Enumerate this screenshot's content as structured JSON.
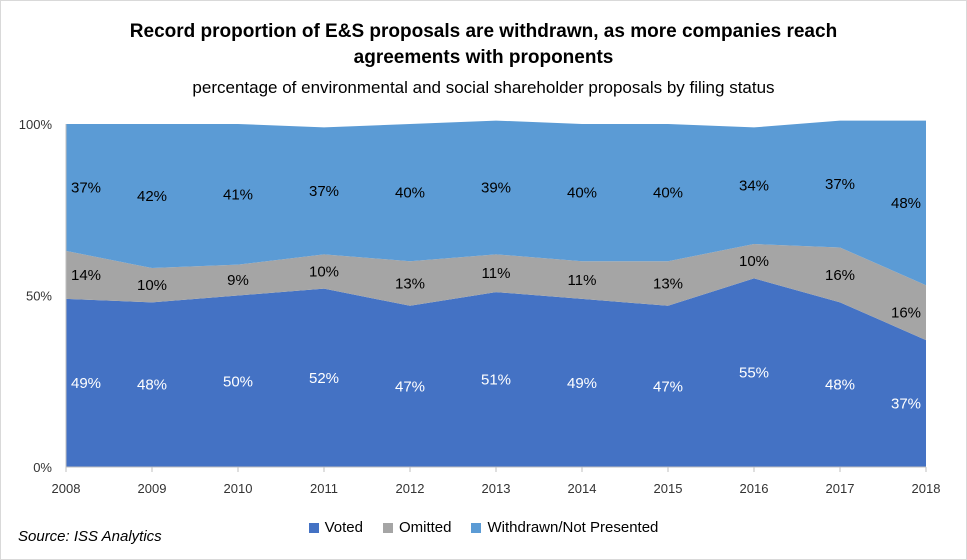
{
  "title_line1": "Record proportion of E&S proposals are withdrawn, as more companies reach",
  "title_line2": "agreements with proponents",
  "subtitle": "percentage of environmental and social shareholder proposals by filing status",
  "source": "Source: ISS Analytics",
  "chart_data": {
    "type": "area",
    "stacked": true,
    "x": [
      "2008",
      "2009",
      "2010",
      "2011",
      "2012",
      "2013",
      "2014",
      "2015",
      "2016",
      "2017",
      "2018"
    ],
    "ylim": [
      0,
      100
    ],
    "yticks": [
      "0%",
      "50%",
      "100%"
    ],
    "series": [
      {
        "name": "Voted",
        "color": "#4472c4",
        "label_color": "#ffffff",
        "values": [
          49,
          48,
          50,
          52,
          47,
          51,
          49,
          47,
          55,
          48,
          37
        ]
      },
      {
        "name": "Omitted",
        "color": "#a5a5a5",
        "label_color": "#000000",
        "values": [
          14,
          10,
          9,
          10,
          13,
          11,
          11,
          13,
          10,
          16,
          16
        ]
      },
      {
        "name": "Withdrawn/Not Presented",
        "color": "#5b9bd5",
        "label_color": "#000000",
        "values": [
          37,
          42,
          41,
          37,
          40,
          39,
          40,
          40,
          34,
          37,
          48
        ]
      }
    ],
    "legend_position": "bottom",
    "grid": false
  }
}
